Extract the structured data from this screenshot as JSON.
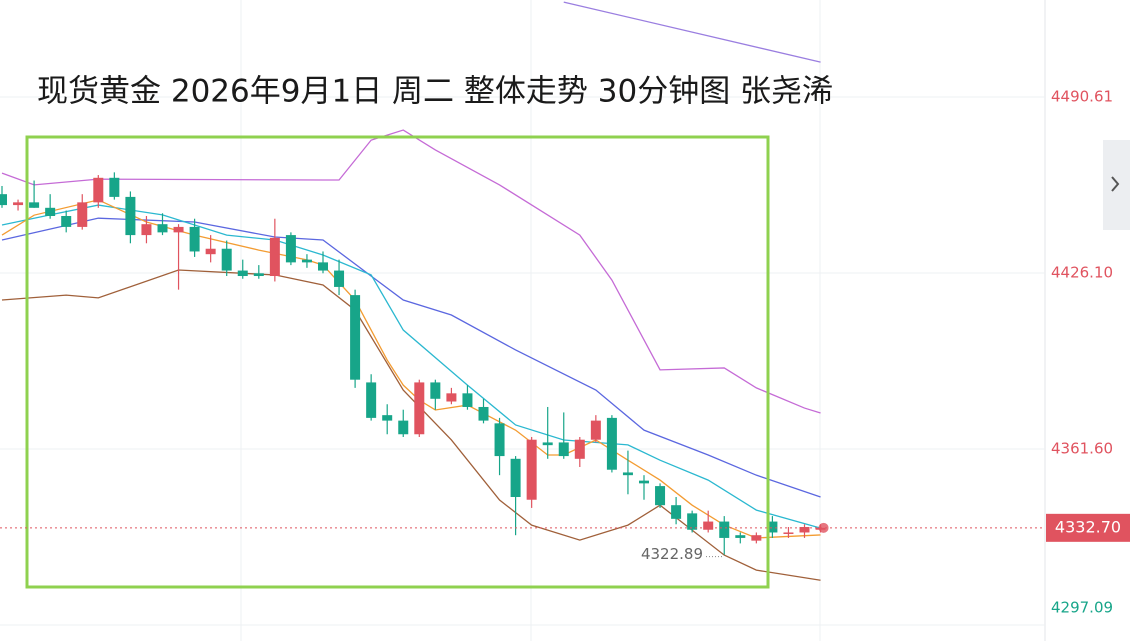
{
  "chart_data": {
    "type": "candlestick",
    "title": "现货黄金 2026年9月1日 周二 整体走势 30分钟图 张尧浠",
    "up_color": "#e0535f",
    "down_color": "#17a589",
    "candles": [
      {
        "o": 4455,
        "h": 4458,
        "l": 4450,
        "c": 4451
      },
      {
        "o": 4451,
        "h": 4453,
        "l": 4449,
        "c": 4452
      },
      {
        "o": 4452,
        "h": 4460,
        "l": 4450,
        "c": 4450
      },
      {
        "o": 4450,
        "h": 4455,
        "l": 4446,
        "c": 4447
      },
      {
        "o": 4447,
        "h": 4449,
        "l": 4441,
        "c": 4443
      },
      {
        "o": 4443,
        "h": 4455,
        "l": 4442,
        "c": 4452
      },
      {
        "o": 4452,
        "h": 4462,
        "l": 4450,
        "c": 4461
      },
      {
        "o": 4461,
        "h": 4463,
        "l": 4453,
        "c": 4454
      },
      {
        "o": 4454,
        "h": 4456,
        "l": 4437,
        "c": 4440
      },
      {
        "o": 4440,
        "h": 4447,
        "l": 4437,
        "c": 4444
      },
      {
        "o": 4444,
        "h": 4448,
        "l": 4440,
        "c": 4441
      },
      {
        "o": 4441,
        "h": 4444,
        "l": 4420,
        "c": 4443
      },
      {
        "o": 4443,
        "h": 4446,
        "l": 4432,
        "c": 4434
      },
      {
        "o": 4433,
        "h": 4440,
        "l": 4430,
        "c": 4435
      },
      {
        "o": 4435,
        "h": 4438,
        "l": 4425,
        "c": 4427
      },
      {
        "o": 4427,
        "h": 4431,
        "l": 4424,
        "c": 4425
      },
      {
        "o": 4426,
        "h": 4429,
        "l": 4424,
        "c": 4425
      },
      {
        "o": 4425,
        "h": 4446,
        "l": 4423,
        "c": 4439
      },
      {
        "o": 4440,
        "h": 4441,
        "l": 4429,
        "c": 4430
      },
      {
        "o": 4431,
        "h": 4433,
        "l": 4428,
        "c": 4430
      },
      {
        "o": 4430,
        "h": 4434,
        "l": 4426,
        "c": 4427
      },
      {
        "o": 4427,
        "h": 4431,
        "l": 4418,
        "c": 4421
      },
      {
        "o": 4418,
        "h": 4420,
        "l": 4384,
        "c": 4387
      },
      {
        "o": 4386,
        "h": 4389,
        "l": 4372,
        "c": 4373
      },
      {
        "o": 4374,
        "h": 4378,
        "l": 4367,
        "c": 4372
      },
      {
        "o": 4372,
        "h": 4376,
        "l": 4366,
        "c": 4367
      },
      {
        "o": 4367,
        "h": 4387,
        "l": 4366,
        "c": 4386
      },
      {
        "o": 4386,
        "h": 4387,
        "l": 4376,
        "c": 4380
      },
      {
        "o": 4379,
        "h": 4384,
        "l": 4378,
        "c": 4382
      },
      {
        "o": 4382,
        "h": 4385,
        "l": 4376,
        "c": 4377
      },
      {
        "o": 4377,
        "h": 4380,
        "l": 4371,
        "c": 4372
      },
      {
        "o": 4371,
        "h": 4373,
        "l": 4352,
        "c": 4359
      },
      {
        "o": 4358,
        "h": 4359,
        "l": 4330,
        "c": 4344
      },
      {
        "o": 4343,
        "h": 4366,
        "l": 4340,
        "c": 4365
      },
      {
        "o": 4364,
        "h": 4377,
        "l": 4358,
        "c": 4363
      },
      {
        "o": 4364,
        "h": 4375,
        "l": 4358,
        "c": 4359
      },
      {
        "o": 4358,
        "h": 4366,
        "l": 4355,
        "c": 4365
      },
      {
        "o": 4365,
        "h": 4374,
        "l": 4364,
        "c": 4372
      },
      {
        "o": 4373,
        "h": 4374,
        "l": 4353,
        "c": 4354
      },
      {
        "o": 4353,
        "h": 4361,
        "l": 4345,
        "c": 4352
      },
      {
        "o": 4350,
        "h": 4352,
        "l": 4343,
        "c": 4349
      },
      {
        "o": 4348,
        "h": 4349,
        "l": 4340,
        "c": 4341
      },
      {
        "o": 4341,
        "h": 4344,
        "l": 4334,
        "c": 4336
      },
      {
        "o": 4338,
        "h": 4339,
        "l": 4331,
        "c": 4332
      },
      {
        "o": 4332,
        "h": 4339,
        "l": 4331,
        "c": 4335
      },
      {
        "o": 4335,
        "h": 4337,
        "l": 4322.89,
        "c": 4329
      },
      {
        "o": 4330,
        "h": 4331,
        "l": 4327,
        "c": 4329
      },
      {
        "o": 4328,
        "h": 4331,
        "l": 4327,
        "c": 4330
      },
      {
        "o": 4335,
        "h": 4337,
        "l": 4329,
        "c": 4331
      },
      {
        "o": 4331,
        "h": 4333,
        "l": 4329,
        "c": 4331
      },
      {
        "o": 4331,
        "h": 4334,
        "l": 4329,
        "c": 4333
      },
      {
        "o": 4332,
        "h": 4334,
        "l": 4331,
        "c": 4332.7
      }
    ],
    "lines": [
      {
        "color": "#c56bd6",
        "x": [
          0,
          2,
          6,
          20,
          21,
          23,
          25,
          27,
          31,
          36,
          38,
          41,
          45,
          47,
          50,
          51
        ],
        "values": [
          4462.7,
          4458.4,
          4460.5,
          4460.2,
          4460.2,
          4474.8,
          4478.5,
          4471.2,
          4458.4,
          4440.0,
          4423.5,
          4390.6,
          4391.3,
          4384,
          4376.6,
          4374.8
        ]
      },
      {
        "color": "#5b67e0",
        "x": [
          0,
          6,
          12,
          17,
          20,
          25,
          28,
          32,
          37,
          40,
          44,
          47,
          51
        ],
        "values": [
          4438.2,
          4446.2,
          4444.8,
          4439.3,
          4438.2,
          4416.2,
          4410.7,
          4397.9,
          4383.2,
          4368.5,
          4359.4,
          4352.0,
          4344.0
        ]
      },
      {
        "color": "#a0603a",
        "x": [
          0,
          4,
          6,
          11,
          17,
          20,
          22,
          25,
          28,
          31,
          33,
          36,
          39,
          41,
          45,
          47,
          51
        ],
        "values": [
          4416.2,
          4418,
          4417,
          4427.2,
          4425.4,
          4421.7,
          4412.5,
          4383.2,
          4364.9,
          4342.9,
          4333.7,
          4328.2,
          4333.7,
          4341.0,
          4322.7,
          4317.2,
          4313.5
        ]
      },
      {
        "color": "#2bb8d0",
        "x": [
          0,
          3,
          6,
          10,
          14,
          17,
          20,
          23,
          25,
          29,
          32,
          35,
          39,
          41,
          44,
          47,
          51
        ],
        "values": [
          4443.7,
          4447.4,
          4451.0,
          4447.4,
          4440.0,
          4438.2,
          4432.7,
          4425.4,
          4405.2,
          4385.0,
          4370.4,
          4364.9,
          4363.1,
          4357.5,
          4350.2,
          4339.2,
          4332.6
        ]
      },
      {
        "color": "#f39c32",
        "x": [
          0,
          2,
          6,
          9,
          12,
          16,
          19,
          20,
          22,
          24,
          25,
          26,
          27,
          29,
          32,
          34,
          35,
          37,
          39,
          41,
          43,
          45,
          47,
          51
        ],
        "values": [
          4440,
          4447.3,
          4452.9,
          4444.8,
          4440,
          4434.5,
          4430.9,
          4429,
          4416.2,
          4394.2,
          4385,
          4379.5,
          4375.9,
          4377.7,
          4368.5,
          4359.4,
          4359.4,
          4364.9,
          4357.5,
          4350.2,
          4341,
          4333.7,
          4329,
          4330.1
        ]
      },
      {
        "color": "#9a7ee0",
        "x": [
          35,
          51
        ],
        "values": [
          4525.4,
          4503.4
        ]
      }
    ],
    "ylim": [
      4291.22,
      4526.17
    ],
    "yticks": [
      4490.61,
      {
        "value": 4426.1,
        "label": "4426.10"
      },
      {
        "value": 4361.6,
        "label": "4361.60"
      },
      4297.09
    ],
    "last_price": {
      "value": 4332.7,
      "label": "4332.70"
    },
    "low_label": 4322.89
  }
}
